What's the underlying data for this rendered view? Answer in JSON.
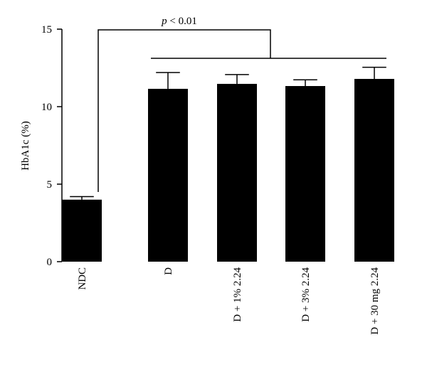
{
  "chart_data": {
    "type": "bar",
    "y_label": "HbA1c (%)",
    "categories": [
      "NDC",
      "D",
      "D + 1% 2.24",
      "D + 3% 2.24",
      "D + 30 mg 2.24"
    ],
    "values": [
      4.0,
      11.15,
      11.47,
      11.33,
      11.79
    ],
    "errors": [
      0.2,
      1.05,
      0.6,
      0.4,
      0.75
    ],
    "color": "#000000",
    "ylim": [
      0,
      15
    ],
    "yticks": [
      0,
      5,
      10,
      15
    ],
    "annotation": {
      "symbol": "p",
      "text": "< 0.01"
    }
  }
}
